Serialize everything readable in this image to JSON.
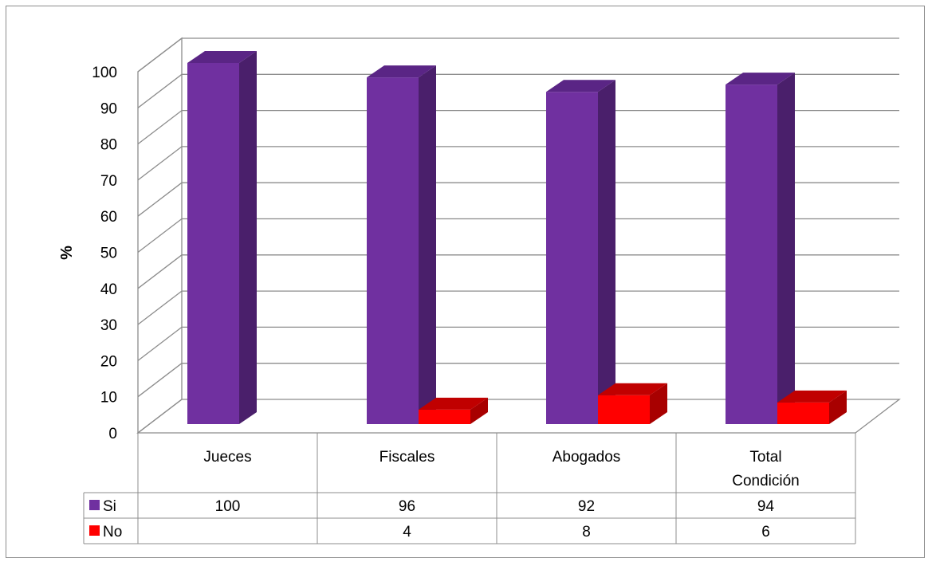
{
  "chart_data": {
    "type": "bar",
    "title": "",
    "xlabel": "",
    "ylabel": "%",
    "ylim": [
      0,
      100
    ],
    "y_ticks": [
      "0",
      "10",
      "20",
      "30",
      "40",
      "50",
      "60",
      "70",
      "80",
      "90",
      "100"
    ],
    "grid": true,
    "three_d": true,
    "legend_placement": "data-table-left",
    "categories": [
      "Jueces",
      "Fiscales",
      "Abogados",
      "Total Condición"
    ],
    "category_label_lines": [
      [
        "Jueces"
      ],
      [
        "Fiscales"
      ],
      [
        "Abogados"
      ],
      [
        "Total",
        "Condición"
      ]
    ],
    "series": [
      {
        "name": "Si",
        "values": [
          100,
          96,
          92,
          94
        ],
        "table_values": [
          "100",
          "96",
          "92",
          "94"
        ],
        "color": "#7030a0",
        "side_color": "#4a1f6b",
        "top_color": "#5a2585"
      },
      {
        "name": "No",
        "values": [
          0,
          4,
          8,
          6
        ],
        "table_values": [
          "",
          "4",
          "8",
          "6"
        ],
        "color": "#ff0000",
        "side_color": "#a80000",
        "top_color": "#c00000"
      }
    ]
  }
}
